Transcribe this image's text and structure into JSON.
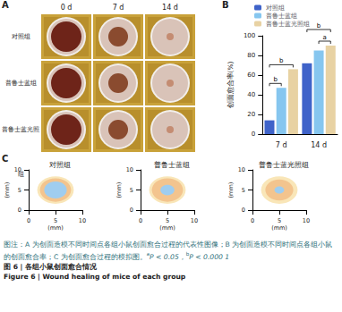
{
  "panel_a": {
    "label": "A",
    "columns": [
      "0 d",
      "7 d",
      "14 d"
    ],
    "rows": [
      "对照组",
      "普鲁士蓝组",
      "普鲁士蓝光照组"
    ]
  },
  "chart_data": {
    "label": "B",
    "type": "bar",
    "categories": [
      "7 d",
      "14 d"
    ],
    "y_label": "创面愈合率(%)",
    "ylim": [
      0,
      100
    ],
    "yticks": [
      0,
      20,
      40,
      60,
      80,
      100
    ],
    "grid": false,
    "legend": "top-left",
    "series": [
      {
        "name": "对照组",
        "color": "#3f63c9",
        "values": [
          14,
          72
        ]
      },
      {
        "name": "普鲁士蓝组",
        "color": "#86c6ef",
        "values": [
          47,
          85
        ]
      },
      {
        "name": "普鲁士蓝光照组",
        "color": "#e8d2a3",
        "values": [
          66,
          90
        ]
      }
    ],
    "annotations": [
      {
        "category": "7 d",
        "from": "对照组",
        "to": "普鲁士蓝组",
        "label": "b"
      },
      {
        "category": "7 d",
        "from": "对照组",
        "to": "普鲁士蓝光照组",
        "label": "b"
      },
      {
        "category": "14 d",
        "from": "普鲁士蓝组",
        "to": "普鲁士蓝光照组",
        "label": "a"
      },
      {
        "category": "14 d",
        "from": "对照组",
        "to": "普鲁士蓝光照组",
        "label": "b"
      }
    ]
  },
  "panel_c": {
    "label": "C",
    "axis_label": "(mm)",
    "xlim": [
      0,
      10
    ],
    "ylim": [
      0,
      10
    ],
    "xticks": [
      0,
      5,
      10
    ],
    "yticks": [
      0,
      5,
      10
    ],
    "center": [
      5,
      5
    ],
    "plots": [
      {
        "title": "对照组",
        "rings": [
          {
            "radius": 3.4,
            "color": "#f9e6b8"
          },
          {
            "radius": 2.9,
            "color": "#f3c48e"
          },
          {
            "radius": 2.1,
            "color": "#9fcdef"
          }
        ]
      },
      {
        "title": "普鲁士蓝组",
        "rings": [
          {
            "radius": 3.4,
            "color": "#f9e6b8"
          },
          {
            "radius": 2.9,
            "color": "#f3c48e"
          },
          {
            "radius": 1.3,
            "color": "#9fcdef"
          }
        ]
      },
      {
        "title": "普鲁士蓝光照组",
        "rings": [
          {
            "radius": 3.4,
            "color": "#f9e6b8"
          },
          {
            "radius": 2.6,
            "color": "#f3c48e"
          },
          {
            "radius": 0.9,
            "color": "#9fcdef"
          }
        ]
      }
    ]
  },
  "caption": {
    "note": "图注：A 为创面造模不同时间点各组小鼠创面愈合过程的代表性图像；B 为创面造模不同时间点各组小鼠的创面愈合率；C 为创面愈合过程的模拟图。",
    "significance": [
      {
        "mark": "a",
        "text": "P < 0.05，"
      },
      {
        "mark": "b",
        "text": "P < 0.000 1"
      }
    ],
    "title_zh": "图 6 | 各组小鼠创面愈合情况",
    "title_en": "Figure 6 | Wound healing of mice of each group"
  }
}
